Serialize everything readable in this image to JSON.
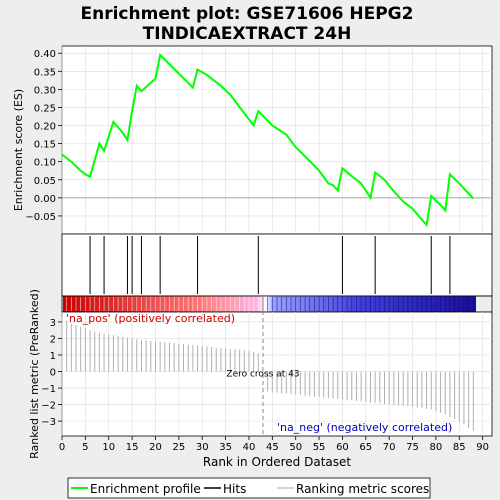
{
  "chart_data": {
    "type": "line",
    "title_line1": "Enrichment plot: GSE71606 HEPG2",
    "title_line2": "TINDICAEXTRACT 24H",
    "xlabel": "Rank in Ordered Dataset",
    "ylabel_top": "Enrichment score (ES)",
    "ylabel_bottom": "Ranked list metric (PreRanked)",
    "xlim": [
      0,
      92
    ],
    "ylim_top": [
      -0.1,
      0.42
    ],
    "ylim_bottom": [
      -3.9,
      3.6
    ],
    "x_ticks": [
      0,
      5,
      10,
      15,
      20,
      25,
      30,
      35,
      40,
      45,
      50,
      55,
      60,
      65,
      70,
      75,
      80,
      85,
      90
    ],
    "y_ticks_top": [
      -0.05,
      0.0,
      0.05,
      0.1,
      0.15,
      0.2,
      0.25,
      0.3,
      0.35,
      0.4
    ],
    "y_ticks_top_labels": [
      "−0.05",
      "0.00",
      "0.05",
      "0.10",
      "0.15",
      "0.20",
      "0.25",
      "0.30",
      "0.35",
      "0.40"
    ],
    "y_ticks_bottom": [
      -3,
      -2,
      -1,
      0,
      1,
      2,
      3
    ],
    "y_ticks_bottom_labels": [
      "−3",
      "−2",
      "−1",
      "0",
      "1",
      "2",
      "3"
    ],
    "es_curve": {
      "x": [
        0,
        2,
        4,
        5,
        6,
        8,
        9,
        11,
        13,
        14,
        15,
        16,
        17,
        20,
        21,
        28,
        29,
        31,
        34,
        36,
        41,
        42,
        45,
        48,
        50,
        52,
        55,
        57,
        58,
        59,
        60,
        62,
        64,
        66,
        67,
        69,
        71,
        73,
        75,
        78,
        79,
        81,
        82,
        83,
        85,
        88
      ],
      "y": [
        0.12,
        0.1,
        0.075,
        0.065,
        0.058,
        0.15,
        0.13,
        0.21,
        0.18,
        0.16,
        0.24,
        0.31,
        0.295,
        0.33,
        0.395,
        0.305,
        0.355,
        0.34,
        0.31,
        0.285,
        0.2,
        0.24,
        0.2,
        0.175,
        0.14,
        0.115,
        0.075,
        0.04,
        0.035,
        0.02,
        0.082,
        0.06,
        0.04,
        0.0,
        0.07,
        0.05,
        0.018,
        -0.01,
        -0.03,
        -0.075,
        0.005,
        -0.02,
        -0.035,
        0.065,
        0.04,
        -0.002
      ]
    },
    "hits_x": [
      6,
      9,
      14,
      15,
      17,
      21,
      29,
      42,
      60,
      67,
      79,
      83
    ],
    "ranked_metric": {
      "x": [
        0,
        1,
        2,
        3,
        4,
        5,
        6,
        7,
        8,
        9,
        10,
        11,
        12,
        13,
        14,
        15,
        16,
        17,
        18,
        19,
        20,
        21,
        22,
        23,
        24,
        25,
        26,
        27,
        28,
        29,
        30,
        31,
        32,
        33,
        34,
        35,
        36,
        37,
        38,
        39,
        40,
        41,
        42,
        43,
        44,
        45,
        46,
        47,
        48,
        49,
        50,
        51,
        52,
        53,
        54,
        55,
        56,
        57,
        58,
        59,
        60,
        61,
        62,
        63,
        64,
        65,
        66,
        67,
        68,
        69,
        70,
        71,
        72,
        73,
        74,
        75,
        76,
        77,
        78,
        79,
        80,
        81,
        82,
        83,
        84,
        85,
        86,
        87,
        88
      ],
      "y": [
        3.3,
        3.1,
        2.9,
        2.8,
        2.7,
        2.6,
        2.5,
        2.4,
        2.35,
        2.3,
        2.25,
        2.2,
        2.15,
        2.1,
        2.05,
        2.0,
        1.95,
        1.9,
        1.88,
        1.85,
        1.82,
        1.8,
        1.77,
        1.74,
        1.71,
        1.68,
        1.65,
        1.62,
        1.6,
        1.57,
        1.54,
        1.51,
        1.48,
        1.45,
        1.42,
        1.39,
        1.36,
        1.34,
        1.31,
        1.28,
        1.25,
        1.2,
        1.1,
        0.0,
        -1.2,
        -1.25,
        -1.28,
        -1.31,
        -1.34,
        -1.37,
        -1.4,
        -1.43,
        -1.46,
        -1.49,
        -1.52,
        -1.55,
        -1.58,
        -1.6,
        -1.63,
        -1.66,
        -1.69,
        -1.72,
        -1.75,
        -1.78,
        -1.81,
        -1.84,
        -1.87,
        -1.9,
        -1.93,
        -1.96,
        -1.99,
        -2.02,
        -2.05,
        -2.08,
        -2.11,
        -2.14,
        -2.17,
        -2.2,
        -2.25,
        -2.3,
        -2.4,
        -2.5,
        -2.6,
        -2.75,
        -2.9,
        -3.05,
        -3.2,
        -3.4,
        -3.6
      ]
    },
    "zero_cross_rank": 43,
    "zero_cross_label": "Zero cross at 43",
    "pos_label": "'na_pos' (positively correlated)",
    "neg_label": "'na_neg' (negatively correlated)",
    "legend": [
      {
        "name": "Enrichment profile",
        "color": "#00ff00"
      },
      {
        "name": "Hits",
        "color": "#000000"
      },
      {
        "name": "Ranking metric scores",
        "color": "#aaaaaa"
      }
    ],
    "colors": {
      "es_line": "#00ff00",
      "pos": "#dd0000",
      "neg": "#0000dd",
      "pos_text": "#cc0000",
      "neg_text": "#0000bb"
    }
  }
}
